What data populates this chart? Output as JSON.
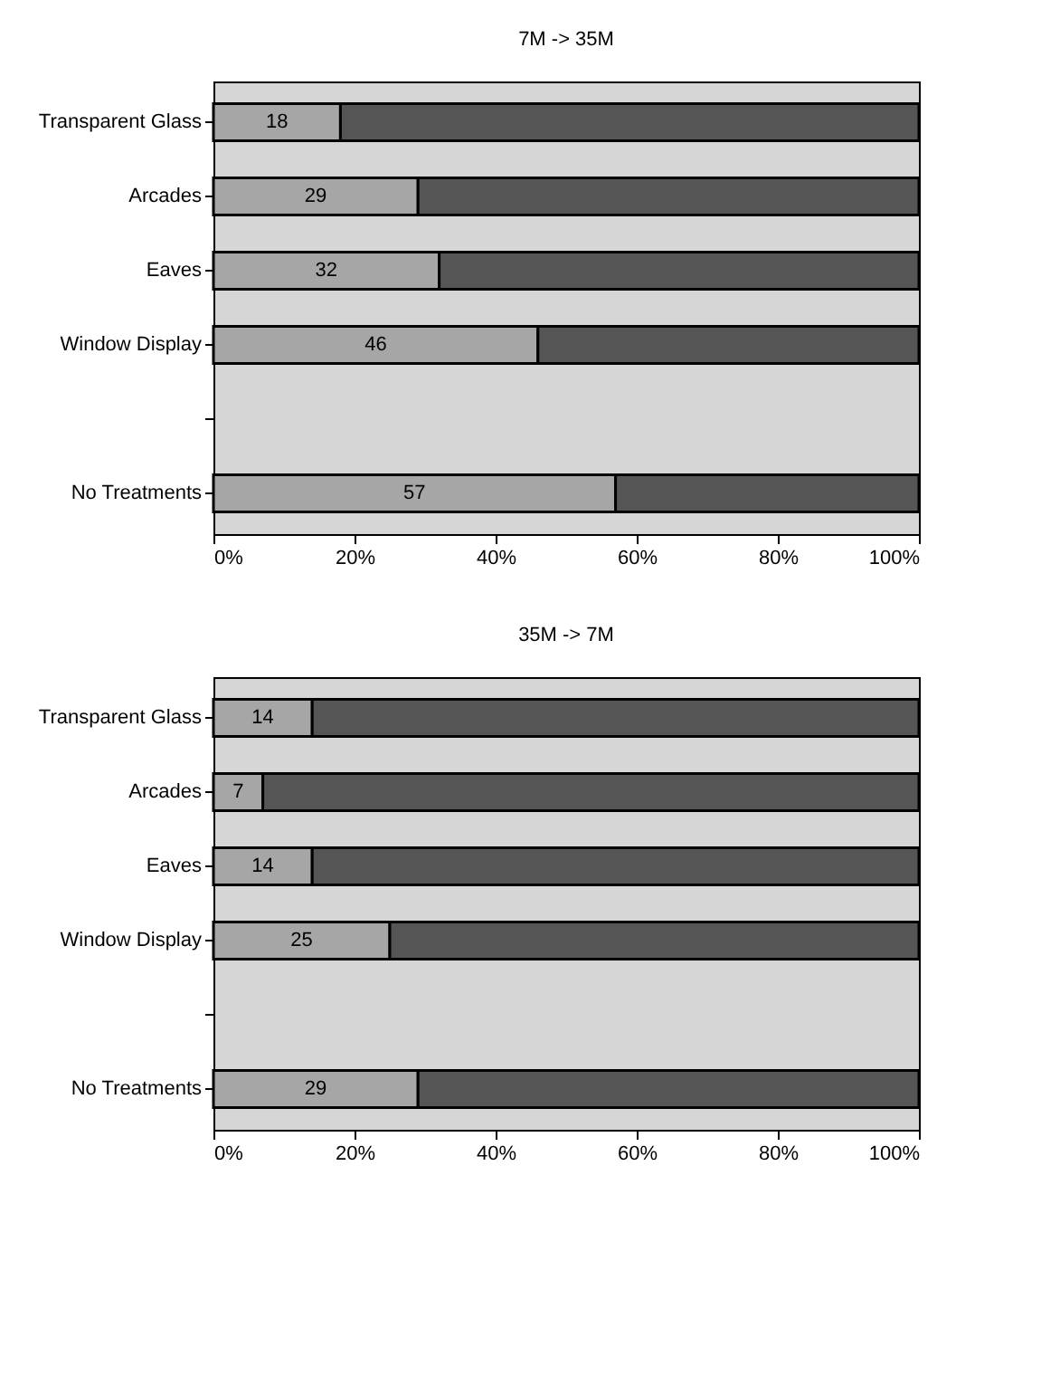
{
  "chart_data": [
    {
      "type": "bar",
      "orientation": "horizontal",
      "stacked": true,
      "title": "7M -> 35M",
      "categories": [
        "Transparent Glass",
        "Arcades",
        "Eaves",
        "Window Display",
        null,
        "No Treatments"
      ],
      "series": [
        {
          "color": "#a6a6a6",
          "values": [
            18,
            29,
            32,
            46,
            null,
            57
          ],
          "value_labels": [
            "18",
            "29",
            "32",
            "46",
            null,
            "57"
          ]
        },
        {
          "color": "#555555",
          "values": [
            82,
            71,
            68,
            54,
            null,
            43
          ]
        }
      ],
      "xlim": [
        0,
        100
      ],
      "xticks": [
        {
          "value": 0,
          "label": "0%"
        },
        {
          "value": 20,
          "label": "20%"
        },
        {
          "value": 40,
          "label": "40%"
        },
        {
          "value": 60,
          "label": "60%"
        },
        {
          "value": 80,
          "label": "80%"
        },
        {
          "value": 100,
          "label": "100%"
        }
      ]
    },
    {
      "type": "bar",
      "orientation": "horizontal",
      "stacked": true,
      "title": "35M -> 7M",
      "categories": [
        "Transparent Glass",
        "Arcades",
        "Eaves",
        "Window Display",
        null,
        "No Treatments"
      ],
      "series": [
        {
          "color": "#a6a6a6",
          "values": [
            14,
            7,
            14,
            25,
            null,
            29
          ],
          "value_labels": [
            "14",
            "7",
            "14",
            "25",
            null,
            "29"
          ]
        },
        {
          "color": "#555555",
          "values": [
            86,
            93,
            86,
            75,
            null,
            71
          ]
        }
      ],
      "xlim": [
        0,
        100
      ],
      "xticks": [
        {
          "value": 0,
          "label": "0%"
        },
        {
          "value": 20,
          "label": "20%"
        },
        {
          "value": 40,
          "label": "40%"
        },
        {
          "value": 60,
          "label": "60%"
        },
        {
          "value": 80,
          "label": "80%"
        },
        {
          "value": 100,
          "label": "100%"
        }
      ]
    }
  ]
}
